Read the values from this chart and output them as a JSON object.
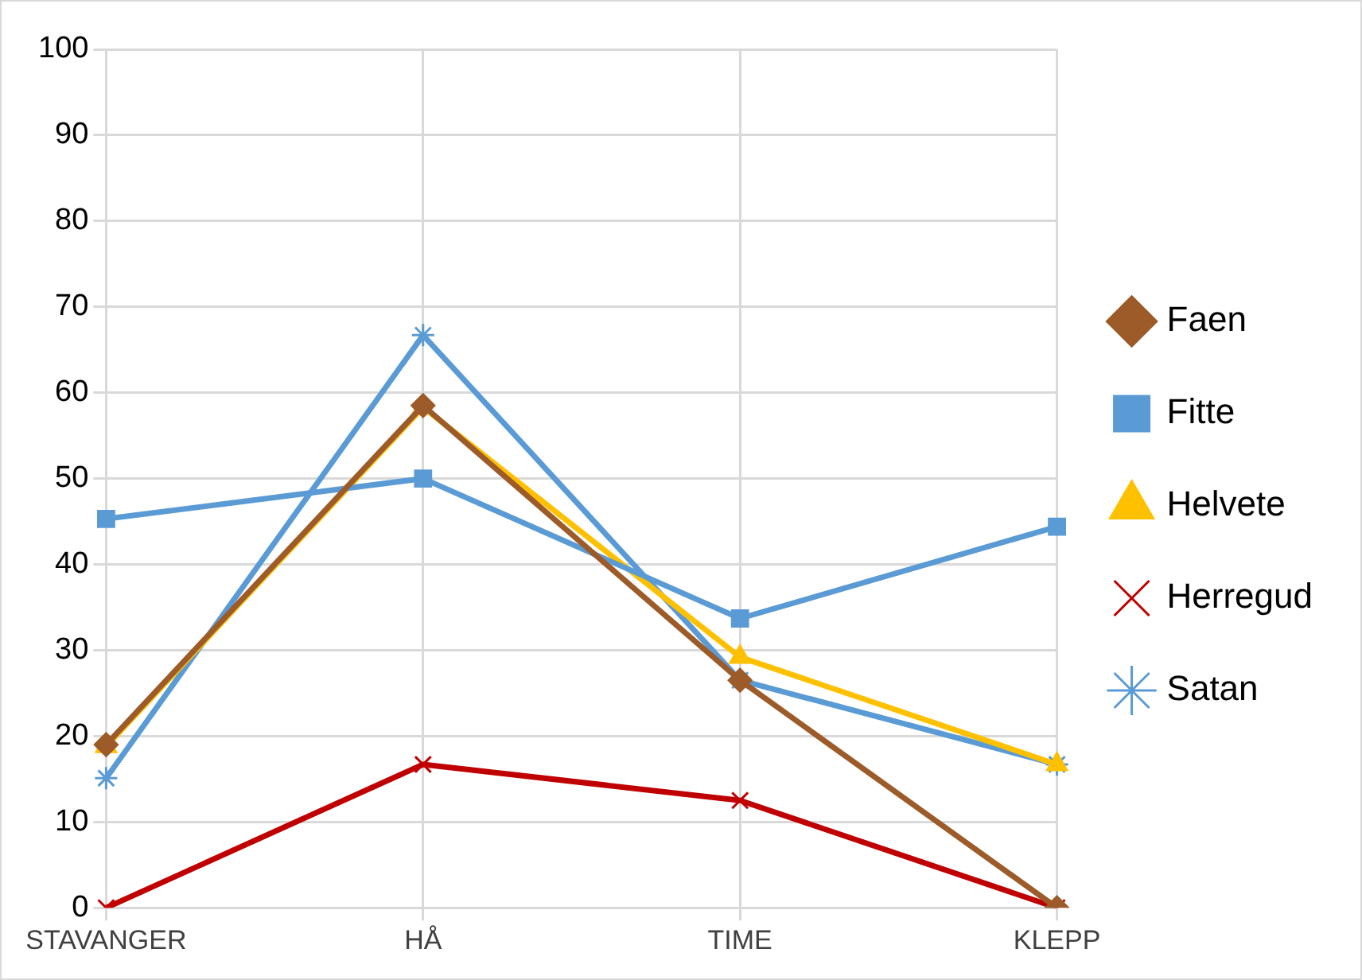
{
  "chart_data": {
    "type": "line",
    "categories": [
      "STAVANGER",
      "HÅ",
      "TIME",
      "KLEPP"
    ],
    "series": [
      {
        "name": "Faen",
        "color": "#9c5b28",
        "marker": "diamond",
        "values": [
          19,
          58.5,
          26.5,
          0
        ]
      },
      {
        "name": "Fitte",
        "color": "#5b9bd5",
        "marker": "square",
        "values": [
          45.3,
          50,
          33.7,
          44.4
        ]
      },
      {
        "name": "Helvete",
        "color": "#ffc000",
        "marker": "triangle",
        "values": [
          18.8,
          58.3,
          29.2,
          16.7
        ]
      },
      {
        "name": "Herregud",
        "color": "#c00000",
        "marker": "cross",
        "values": [
          0,
          16.7,
          12.5,
          0
        ]
      },
      {
        "name": "Satan",
        "color": "#5b9bd5",
        "marker": "cross",
        "values": [
          15.1,
          66.7,
          26.5,
          16.7
        ]
      }
    ],
    "ylim": [
      0,
      100
    ],
    "yticks": [
      0,
      10,
      20,
      30,
      40,
      50,
      60,
      70,
      80,
      90,
      100
    ],
    "grid": true,
    "legend": "right"
  }
}
